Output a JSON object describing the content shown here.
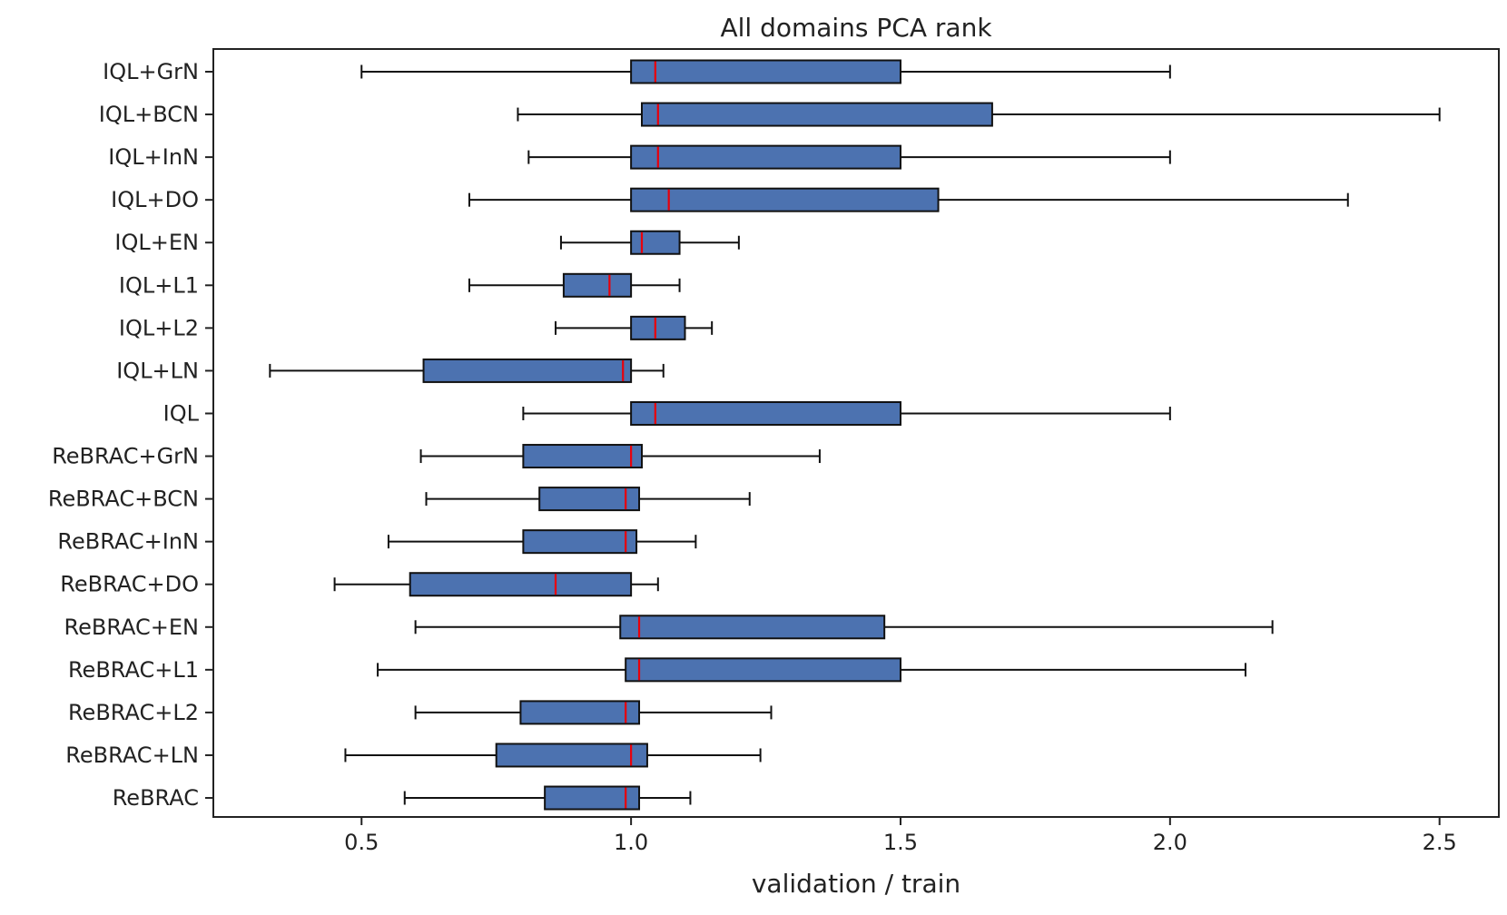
{
  "chart_data": {
    "type": "boxplot",
    "orientation": "horizontal",
    "title": "All domains PCA rank",
    "xlabel": "validation / train",
    "ylabel": "",
    "xlim": [
      0.225,
      2.61
    ],
    "xticks": [
      0.5,
      1.0,
      1.5,
      2.0,
      2.5
    ],
    "xtick_labels": [
      "0.5",
      "1.0",
      "1.5",
      "2.0",
      "2.5"
    ],
    "grid": false,
    "box_color": "#4c72b0",
    "median_color": "#e8000b",
    "line_color": "#111111",
    "categories": [
      "IQL+GrN",
      "IQL+BCN",
      "IQL+InN",
      "IQL+DO",
      "IQL+EN",
      "IQL+L1",
      "IQL+L2",
      "IQL+LN",
      "IQL",
      "ReBRAC+GrN",
      "ReBRAC+BCN",
      "ReBRAC+InN",
      "ReBRAC+DO",
      "ReBRAC+EN",
      "ReBRAC+L1",
      "ReBRAC+L2",
      "ReBRAC+LN",
      "ReBRAC"
    ],
    "boxes": [
      {
        "label": "IQL+GrN",
        "whislo": 0.5,
        "q1": 1.0,
        "med": 1.045,
        "q3": 1.5,
        "whishi": 2.0
      },
      {
        "label": "IQL+BCN",
        "whislo": 0.79,
        "q1": 1.02,
        "med": 1.05,
        "q3": 1.67,
        "whishi": 2.5
      },
      {
        "label": "IQL+InN",
        "whislo": 0.81,
        "q1": 1.0,
        "med": 1.05,
        "q3": 1.5,
        "whishi": 2.0
      },
      {
        "label": "IQL+DO",
        "whislo": 0.7,
        "q1": 1.0,
        "med": 1.07,
        "q3": 1.57,
        "whishi": 2.33
      },
      {
        "label": "IQL+EN",
        "whislo": 0.87,
        "q1": 1.0,
        "med": 1.02,
        "q3": 1.09,
        "whishi": 1.2
      },
      {
        "label": "IQL+L1",
        "whislo": 0.7,
        "q1": 0.875,
        "med": 0.96,
        "q3": 1.0,
        "whishi": 1.09
      },
      {
        "label": "IQL+L2",
        "whislo": 0.86,
        "q1": 1.0,
        "med": 1.045,
        "q3": 1.1,
        "whishi": 1.15
      },
      {
        "label": "IQL+LN",
        "whislo": 0.33,
        "q1": 0.615,
        "med": 0.985,
        "q3": 1.0,
        "whishi": 1.06
      },
      {
        "label": "IQL",
        "whislo": 0.8,
        "q1": 1.0,
        "med": 1.045,
        "q3": 1.5,
        "whishi": 2.0
      },
      {
        "label": "ReBRAC+GrN",
        "whislo": 0.61,
        "q1": 0.8,
        "med": 1.0,
        "q3": 1.02,
        "whishi": 1.35
      },
      {
        "label": "ReBRAC+BCN",
        "whislo": 0.62,
        "q1": 0.83,
        "med": 0.99,
        "q3": 1.015,
        "whishi": 1.22
      },
      {
        "label": "ReBRAC+InN",
        "whislo": 0.55,
        "q1": 0.8,
        "med": 0.99,
        "q3": 1.01,
        "whishi": 1.12
      },
      {
        "label": "ReBRAC+DO",
        "whislo": 0.45,
        "q1": 0.59,
        "med": 0.86,
        "q3": 1.0,
        "whishi": 1.05
      },
      {
        "label": "ReBRAC+EN",
        "whislo": 0.6,
        "q1": 0.98,
        "med": 1.015,
        "q3": 1.47,
        "whishi": 2.19
      },
      {
        "label": "ReBRAC+L1",
        "whislo": 0.53,
        "q1": 0.99,
        "med": 1.015,
        "q3": 1.5,
        "whishi": 2.14
      },
      {
        "label": "ReBRAC+L2",
        "whislo": 0.6,
        "q1": 0.795,
        "med": 0.99,
        "q3": 1.015,
        "whishi": 1.26
      },
      {
        "label": "ReBRAC+LN",
        "whislo": 0.47,
        "q1": 0.75,
        "med": 1.0,
        "q3": 1.03,
        "whishi": 1.24
      },
      {
        "label": "ReBRAC",
        "whislo": 0.58,
        "q1": 0.84,
        "med": 0.99,
        "q3": 1.015,
        "whishi": 1.11
      }
    ]
  }
}
